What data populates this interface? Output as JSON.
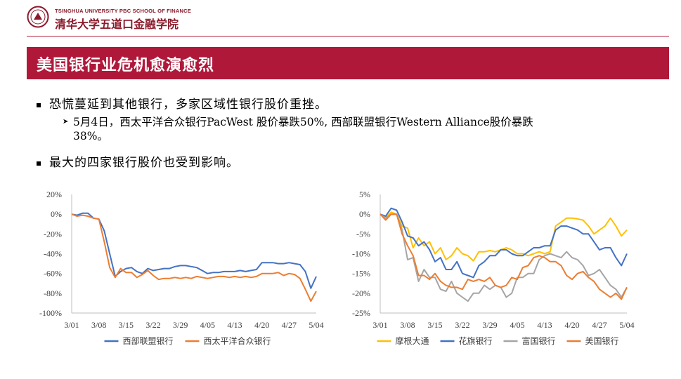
{
  "header": {
    "logo_en": "TSINGHUA UNIVERSITY PBC SCHOOL OF FINANCE",
    "logo_cn": "清华大学五道口金融学院",
    "brand_color": "#8b1a2b",
    "seal_icon": "tsinghua-seal-icon"
  },
  "title": "美国银行业危机愈演愈烈",
  "bullets": [
    {
      "text": "恐慌蔓延到其他银行，多家区域性银行股价重挫。",
      "sub": {
        "line1": "5月4日，西太平洋合众银行PacWest 股价暴跌50%, 西部联盟银行Western Alliance股价暴跌",
        "line2": "38%。"
      }
    },
    {
      "text": "最大的四家银行股价也受到影响。"
    }
  ],
  "chart_data": [
    {
      "type": "line",
      "title": "",
      "xlabel": "",
      "ylabel": "",
      "ylim": [
        -100,
        20
      ],
      "yticks": [
        20,
        0,
        -20,
        -40,
        -60,
        -80,
        -100
      ],
      "ytick_labels": [
        "20%",
        "0%",
        "-20%",
        "-40%",
        "-60%",
        "-80%",
        "-100%"
      ],
      "xtick_labels": [
        "3/01",
        "3/08",
        "3/15",
        "3/22",
        "3/29",
        "4/05",
        "4/13",
        "4/20",
        "4/27",
        "5/04"
      ],
      "n_points": 46,
      "legend_position": "bottom",
      "grid": false,
      "series": [
        {
          "name": "西部联盟银行",
          "color": "#4472c4",
          "values": [
            0,
            -1,
            1,
            1,
            -4,
            -5,
            -17,
            -40,
            -63,
            -58,
            -55,
            -54,
            -58,
            -60,
            -55,
            -57,
            -56,
            -55,
            -55,
            -53,
            -52,
            -52,
            -53,
            -54,
            -57,
            -60,
            -59,
            -59,
            -58,
            -58,
            -58,
            -57,
            -58,
            -57,
            -56,
            -49,
            -49,
            -49,
            -50,
            -50,
            -49,
            -50,
            -51,
            -58,
            -75,
            -63
          ]
        },
        {
          "name": "西太平洋合众银行",
          "color": "#ed7d31",
          "values": [
            0,
            -2,
            -1,
            -2,
            -4,
            -5,
            -28,
            -54,
            -64,
            -55,
            -59,
            -59,
            -64,
            -61,
            -57,
            -62,
            -66,
            -65,
            -65,
            -64,
            -65,
            -64,
            -65,
            -63,
            -64,
            -65,
            -64,
            -63,
            -63,
            -64,
            -63,
            -64,
            -63,
            -64,
            -63,
            -60,
            -60,
            -60,
            -59,
            -62,
            -60,
            -61,
            -65,
            -76,
            -88,
            -78
          ]
        }
      ]
    },
    {
      "type": "line",
      "title": "",
      "xlabel": "",
      "ylabel": "",
      "ylim": [
        -25,
        5
      ],
      "yticks": [
        5,
        0,
        -5,
        -10,
        -15,
        -20,
        -25
      ],
      "ytick_labels": [
        "5%",
        "0%",
        "-5%",
        "-10%",
        "-15%",
        "-20%",
        "-25%"
      ],
      "xtick_labels": [
        "3/01",
        "3/08",
        "3/15",
        "3/22",
        "3/29",
        "4/05",
        "4/13",
        "4/20",
        "4/27",
        "5/04"
      ],
      "n_points": 46,
      "legend_position": "bottom",
      "grid": false,
      "series": [
        {
          "name": "摩根大通",
          "color": "#ffc000",
          "values": [
            0,
            -1,
            0.5,
            0,
            -3,
            -3.5,
            -8.5,
            -6,
            -8,
            -7,
            -10,
            -8.5,
            -11.5,
            -10.5,
            -8.5,
            -10,
            -10.5,
            -11.8,
            -9.5,
            -9.5,
            -9.2,
            -9.5,
            -9,
            -8.5,
            -9,
            -10,
            -10,
            -10.5,
            -10,
            -9.5,
            -10,
            -9.5,
            -3,
            -2,
            -1,
            -1,
            -1.2,
            -1.5,
            -3,
            -5,
            -4,
            -3,
            -1,
            -3,
            -5.5,
            -4
          ]
        },
        {
          "name": "花旗银行",
          "color": "#4472c4",
          "values": [
            0,
            -0.5,
            1.5,
            1,
            -2,
            -5.5,
            -6,
            -8,
            -7,
            -9,
            -12,
            -11,
            -14,
            -14,
            -12,
            -15,
            -15.5,
            -16,
            -13,
            -12,
            -10.5,
            -10.5,
            -9,
            -9,
            -10,
            -10.5,
            -10.5,
            -9.5,
            -8.5,
            -8.5,
            -8,
            -8,
            -4,
            -3,
            -3,
            -3.5,
            -4,
            -5,
            -5,
            -7,
            -9,
            -8.5,
            -8.5,
            -11,
            -13,
            -10
          ]
        },
        {
          "name": "富国银行",
          "color": "#a5a5a5",
          "values": [
            0,
            -1,
            0,
            0,
            -4,
            -11.5,
            -11,
            -17,
            -14,
            -16,
            -16,
            -19,
            -19.5,
            -17,
            -20,
            -21,
            -22,
            -20,
            -20,
            -18,
            -19,
            -18,
            -18.5,
            -21,
            -20,
            -16,
            -16,
            -15,
            -15,
            -11.5,
            -10.5,
            -10,
            -10.5,
            -11,
            -9.5,
            -11,
            -11.5,
            -13,
            -15.5,
            -15,
            -14,
            -16,
            -18,
            -19,
            -21,
            -18.5
          ]
        },
        {
          "name": "美国银行",
          "color": "#ed7d31",
          "values": [
            0,
            -1.5,
            0,
            0,
            -5,
            -8,
            -10.5,
            -15.5,
            -15.5,
            -16.5,
            -15,
            -17,
            -18,
            -18.5,
            -18.5,
            -19,
            -16.5,
            -17,
            -16.5,
            -17,
            -16,
            -18,
            -18.5,
            -18,
            -16,
            -16.5,
            -13.5,
            -13,
            -11,
            -10.5,
            -11,
            -12,
            -12,
            -13,
            -15.5,
            -16.5,
            -15,
            -14.5,
            -16,
            -17,
            -19,
            -20,
            -21,
            -20,
            -21.5,
            -18.5
          ]
        }
      ]
    }
  ]
}
